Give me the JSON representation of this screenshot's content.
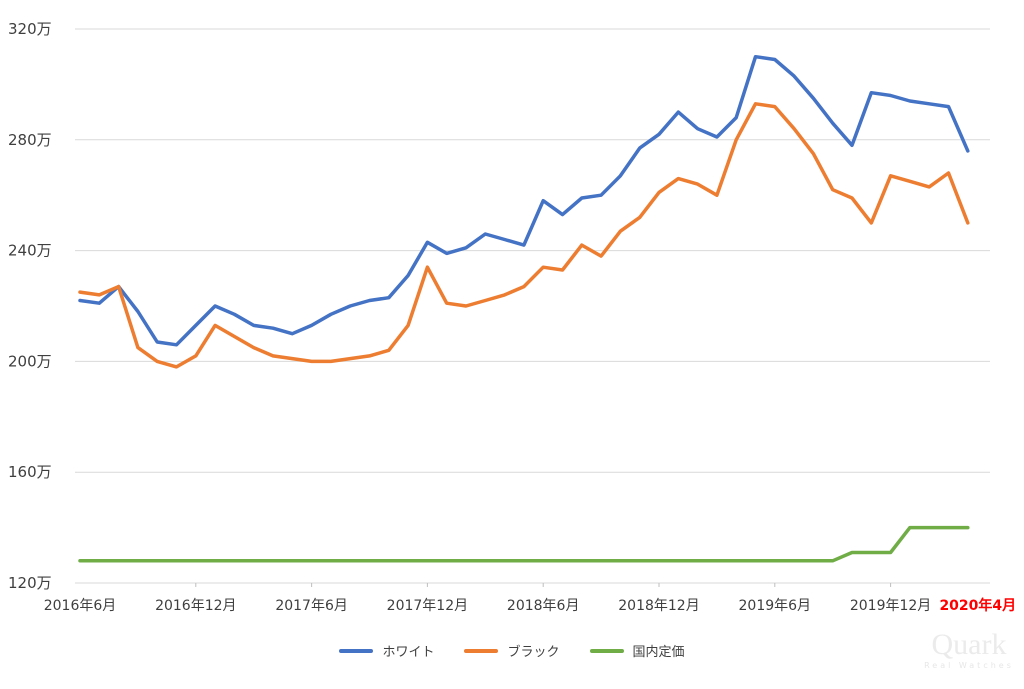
{
  "watermark": {
    "brand": "Quark",
    "tagline": "Real Watches"
  },
  "chart_data": {
    "type": "line",
    "title": "",
    "grid": true,
    "gridline_color": "#D9D9D9",
    "label_color": "#3f3f3f",
    "background": "#ffffff",
    "legend_position": "bottom",
    "categories": [
      "2016-06",
      "2016-07",
      "2016-08",
      "2016-09",
      "2016-10",
      "2016-11",
      "2016-12",
      "2017-01",
      "2017-02",
      "2017-03",
      "2017-04",
      "2017-05",
      "2017-06",
      "2017-07",
      "2017-08",
      "2017-09",
      "2017-10",
      "2017-11",
      "2017-12",
      "2018-01",
      "2018-02",
      "2018-03",
      "2018-04",
      "2018-05",
      "2018-06",
      "2018-07",
      "2018-08",
      "2018-09",
      "2018-10",
      "2018-11",
      "2018-12",
      "2019-01",
      "2019-02",
      "2019-03",
      "2019-04",
      "2019-05",
      "2019-06",
      "2019-07",
      "2019-08",
      "2019-09",
      "2019-10",
      "2019-11",
      "2019-12",
      "2020-01",
      "2020-02",
      "2020-03",
      "2020-04"
    ],
    "series": [
      {
        "id": "white",
        "name": "ホワイト",
        "color": "#4472C4",
        "values": [
          222,
          221,
          227,
          218,
          207,
          206,
          213,
          220,
          217,
          213,
          212,
          210,
          213,
          217,
          220,
          222,
          223,
          231,
          243,
          239,
          241,
          246,
          244,
          242,
          258,
          253,
          259,
          260,
          267,
          277,
          282,
          290,
          284,
          281,
          288,
          310,
          309,
          303,
          295,
          286,
          278,
          297,
          296,
          294,
          293,
          292,
          276
        ]
      },
      {
        "id": "black",
        "name": "ブラック",
        "color": "#ED7D31",
        "values": [
          225,
          224,
          227,
          205,
          200,
          198,
          202,
          213,
          209,
          205,
          202,
          201,
          200,
          200,
          201,
          202,
          204,
          213,
          234,
          221,
          220,
          222,
          224,
          227,
          234,
          233,
          242,
          238,
          247,
          252,
          261,
          266,
          264,
          260,
          280,
          293,
          292,
          284,
          275,
          262,
          259,
          250,
          267,
          265,
          263,
          268,
          250
        ]
      },
      {
        "id": "list-price",
        "name": "国内定価",
        "color": "#70AD47",
        "values": [
          128,
          128,
          128,
          128,
          128,
          128,
          128,
          128,
          128,
          128,
          128,
          128,
          128,
          128,
          128,
          128,
          128,
          128,
          128,
          128,
          128,
          128,
          128,
          128,
          128,
          128,
          128,
          128,
          128,
          128,
          128,
          128,
          128,
          128,
          128,
          128,
          128,
          128,
          128,
          128,
          131,
          131,
          131,
          140,
          140,
          140,
          140
        ]
      }
    ],
    "y_axis": {
      "min": 120,
      "max": 320,
      "step": 40,
      "unit": "万",
      "ticks": [
        {
          "value": 320,
          "label": "320万"
        },
        {
          "value": 280,
          "label": "280万"
        },
        {
          "value": 240,
          "label": "240万"
        },
        {
          "value": 200,
          "label": "200万"
        },
        {
          "value": 160,
          "label": "160万"
        },
        {
          "value": 120,
          "label": "120万"
        }
      ]
    },
    "x_axis": {
      "highlight_color": "#FF0000",
      "ticks": [
        {
          "index": 0,
          "label": "2016年6月"
        },
        {
          "index": 6,
          "label": "2016年12月"
        },
        {
          "index": 12,
          "label": "2017年6月"
        },
        {
          "index": 18,
          "label": "2017年12月"
        },
        {
          "index": 24,
          "label": "2018年6月"
        },
        {
          "index": 30,
          "label": "2018年12月"
        },
        {
          "index": 36,
          "label": "2019年6月"
        },
        {
          "index": 42,
          "label": "2019年12月"
        },
        {
          "index": 46,
          "label": "2020年4月",
          "highlight": true,
          "dx": 10
        }
      ]
    }
  }
}
